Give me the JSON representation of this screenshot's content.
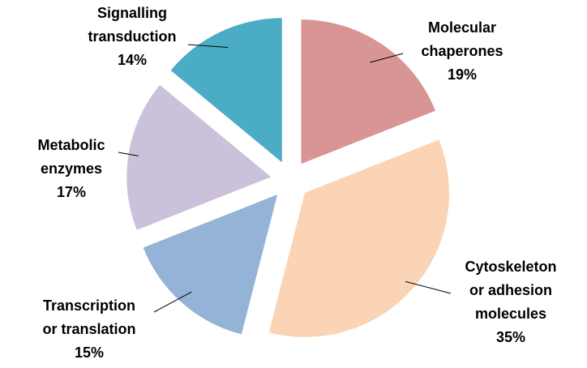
{
  "chart_data": {
    "type": "pie",
    "categories": [
      "Molecular\nchaperones",
      "Cytoskeleton\nor adhesion\nmolecules",
      "Transcription\nor translation",
      "Metabolic\nenzymes",
      "Signalling\ntransduction"
    ],
    "values": [
      19,
      35,
      15,
      17,
      14
    ],
    "value_labels": [
      "19%",
      "35%",
      "15%",
      "17%",
      "14%"
    ],
    "colors": [
      "#d99594",
      "#fad4b4",
      "#95b3d7",
      "#ccc1da",
      "#4bacc6"
    ]
  }
}
